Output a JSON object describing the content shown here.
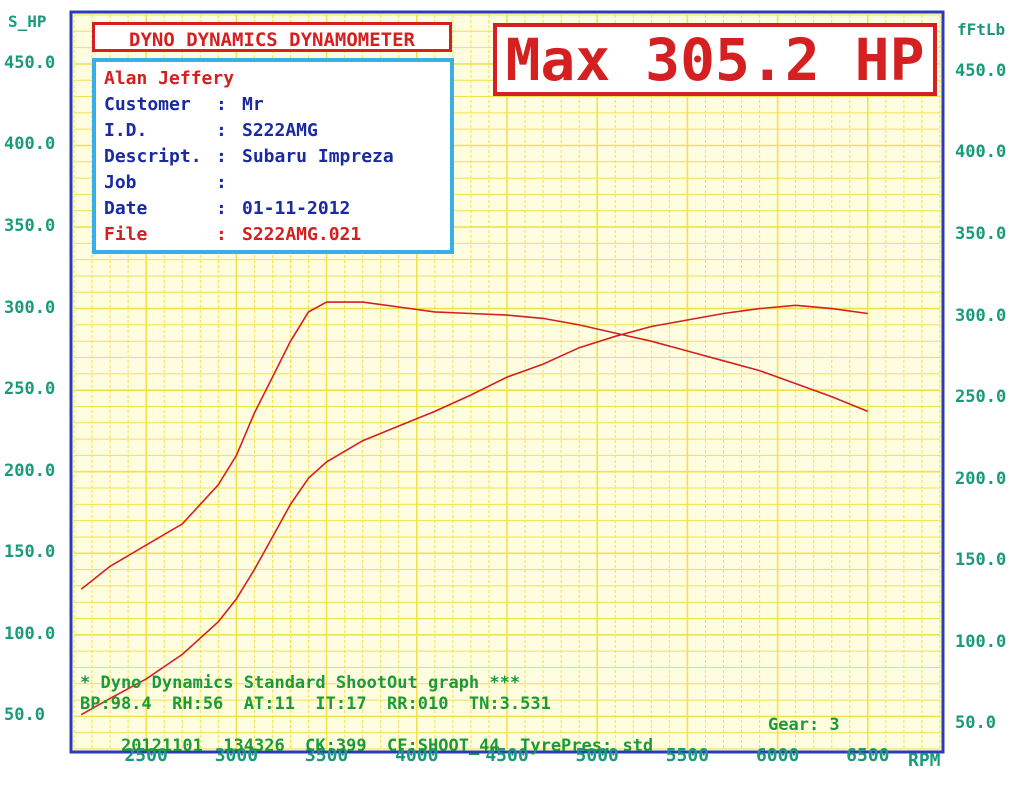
{
  "chart_data": {
    "type": "line",
    "title": "DYNO DYNAMICS DYNAMOMETER",
    "headline": "Max 305.2 HP",
    "xlabel": "RPM",
    "ylabel_left": "S_HP",
    "ylabel_right": "fFtLb",
    "xlim": [
      2100,
      6900
    ],
    "ylim_left": [
      30,
      480
    ],
    "ylim_right": [
      30,
      480
    ],
    "x_ticks": [
      "2500",
      "3000",
      "3500",
      "4000",
      "4500",
      "5000",
      "5500",
      "6000",
      "6500"
    ],
    "x_tick_values": [
      2500,
      3000,
      3500,
      4000,
      4500,
      5000,
      5500,
      6000,
      6500
    ],
    "y_ticks_left": [
      "50.0",
      "100.0",
      "150.0",
      "200.0",
      "250.0",
      "300.0",
      "350.0",
      "400.0",
      "450.0"
    ],
    "y_ticks_right": [
      "50.0",
      "100.0",
      "150.0",
      "200.0",
      "250.0",
      "300.0",
      "350.0",
      "400.0",
      "450.0"
    ],
    "y_tick_values": [
      50,
      100,
      150,
      200,
      250,
      300,
      350,
      400,
      450
    ],
    "grid": true,
    "series": [
      {
        "color": "#d42020",
        "x": [
          2140,
          2300,
          2500,
          2700,
          2900,
          3000,
          3100,
          3200,
          3300,
          3400,
          3500,
          3700,
          3900,
          4100,
          4300,
          4500,
          4700,
          4900,
          5100,
          5300,
          5500,
          5700,
          5900,
          6100,
          6300,
          6500
        ],
        "y": [
          128,
          142,
          155,
          168,
          192,
          210,
          236,
          258,
          280,
          298,
          304,
          304,
          301,
          298,
          297,
          296,
          294,
          290,
          285,
          280,
          274,
          268,
          262,
          254,
          246,
          237
        ]
      },
      {
        "color": "#d42020",
        "x": [
          2140,
          2300,
          2500,
          2700,
          2900,
          3000,
          3100,
          3200,
          3300,
          3400,
          3500,
          3700,
          3900,
          4100,
          4300,
          4500,
          4700,
          4900,
          5100,
          5300,
          5500,
          5700,
          5900,
          6100,
          6300,
          6500
        ],
        "y": [
          51,
          61,
          73,
          88,
          108,
          122,
          140,
          160,
          180,
          196,
          206,
          219,
          228,
          237,
          247,
          258,
          266,
          276,
          283,
          289,
          293,
          297,
          300,
          302,
          300,
          297
        ]
      }
    ]
  },
  "info": {
    "name": "Alan Jeffery",
    "rows": [
      {
        "label": "Customer",
        "sep": ":",
        "value": "Mr",
        "red": false
      },
      {
        "label": "I.D.",
        "sep": ":",
        "value": "S222AMG",
        "red": false
      },
      {
        "label": "Descript.",
        "sep": ":",
        "value": "Subaru Impreza",
        "red": false
      },
      {
        "label": "Job",
        "sep": ":",
        "value": "",
        "red": false
      },
      {
        "label": "Date",
        "sep": ":",
        "value": "01-11-2012",
        "red": false
      },
      {
        "label": "File",
        "sep": ":",
        "value": "S222AMG.021",
        "red": true
      }
    ]
  },
  "footer": {
    "line1": "* Dyno Dynamics Standard ShootOut graph ***",
    "line2": "BP:98.4  RH:56  AT:11  IT:17  RR:010  TN:3.531",
    "line3": "20121101  134326  CK:399  CF:SHOOT_44  TyrePres: std",
    "gear": "Gear: 3"
  },
  "colors": {
    "grid": "#f2e24a",
    "plot_bg": "#fffde0",
    "frame": "#2b3bb8",
    "curve": "#d42020",
    "axis_text": "#1a9a7a",
    "footer_text": "#1a9a3a",
    "info_border": "#3aaee8"
  }
}
